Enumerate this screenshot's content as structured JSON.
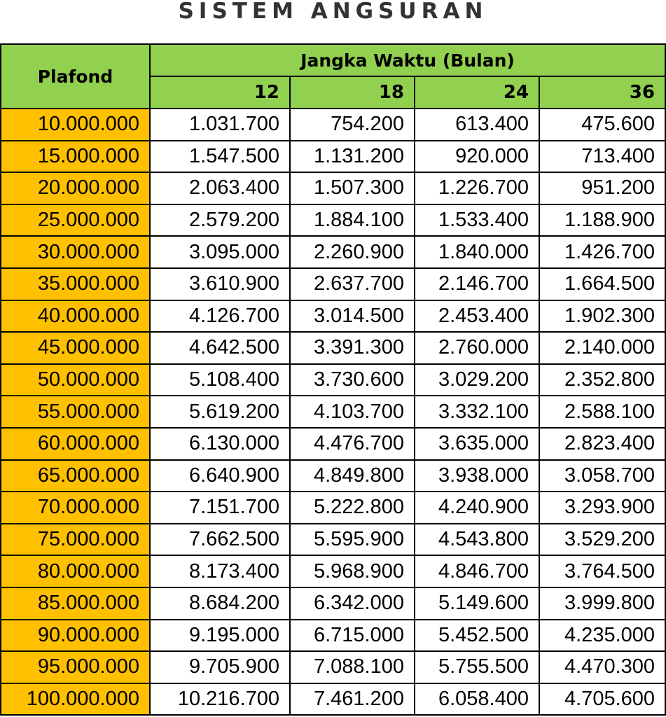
{
  "title": "SISTEM ANGSURAN",
  "table": {
    "plafond_header": "Plafond",
    "term_header": "Jangka Waktu (Bulan)",
    "terms": [
      "12",
      "18",
      "24",
      "36"
    ],
    "rows": [
      {
        "plafond": "10.000.000",
        "values": [
          "1.031.700",
          "754.200",
          "613.400",
          "475.600"
        ]
      },
      {
        "plafond": "15.000.000",
        "values": [
          "1.547.500",
          "1.131.200",
          "920.000",
          "713.400"
        ]
      },
      {
        "plafond": "20.000.000",
        "values": [
          "2.063.400",
          "1.507.300",
          "1.226.700",
          "951.200"
        ]
      },
      {
        "plafond": "25.000.000",
        "values": [
          "2.579.200",
          "1.884.100",
          "1.533.400",
          "1.188.900"
        ]
      },
      {
        "plafond": "30.000.000",
        "values": [
          "3.095.000",
          "2.260.900",
          "1.840.000",
          "1.426.700"
        ]
      },
      {
        "plafond": "35.000.000",
        "values": [
          "3.610.900",
          "2.637.700",
          "2.146.700",
          "1.664.500"
        ]
      },
      {
        "plafond": "40.000.000",
        "values": [
          "4.126.700",
          "3.014.500",
          "2.453.400",
          "1.902.300"
        ]
      },
      {
        "plafond": "45.000.000",
        "values": [
          "4.642.500",
          "3.391.300",
          "2.760.000",
          "2.140.000"
        ]
      },
      {
        "plafond": "50.000.000",
        "values": [
          "5.108.400",
          "3.730.600",
          "3.029.200",
          "2.352.800"
        ]
      },
      {
        "plafond": "55.000.000",
        "values": [
          "5.619.200",
          "4.103.700",
          "3.332.100",
          "2.588.100"
        ]
      },
      {
        "plafond": "60.000.000",
        "values": [
          "6.130.000",
          "4.476.700",
          "3.635.000",
          "2.823.400"
        ]
      },
      {
        "plafond": "65.000.000",
        "values": [
          "6.640.900",
          "4.849.800",
          "3.938.000",
          "3.058.700"
        ]
      },
      {
        "plafond": "70.000.000",
        "values": [
          "7.151.700",
          "5.222.800",
          "4.240.900",
          "3.293.900"
        ]
      },
      {
        "plafond": "75.000.000",
        "values": [
          "7.662.500",
          "5.595.900",
          "4.543.800",
          "3.529.200"
        ]
      },
      {
        "plafond": "80.000.000",
        "values": [
          "8.173.400",
          "5.968.900",
          "4.846.700",
          "3.764.500"
        ]
      },
      {
        "plafond": "85.000.000",
        "values": [
          "8.684.200",
          "6.342.000",
          "5.149.600",
          "3.999.800"
        ]
      },
      {
        "plafond": "90.000.000",
        "values": [
          "9.195.000",
          "6.715.000",
          "5.452.500",
          "4.235.000"
        ]
      },
      {
        "plafond": "95.000.000",
        "values": [
          "9.705.900",
          "7.088.100",
          "5.755.500",
          "4.470.300"
        ]
      },
      {
        "plafond": "100.000.000",
        "values": [
          "10.216.700",
          "7.461.200",
          "6.058.400",
          "4.705.600"
        ]
      }
    ]
  },
  "colors": {
    "header_green": "#92d050",
    "plafond_orange": "#ffc000",
    "border": "#000000",
    "title_text": "#333333"
  }
}
